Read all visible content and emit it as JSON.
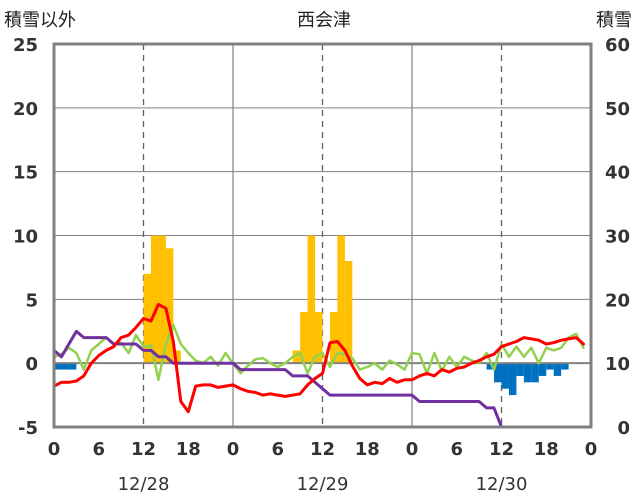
{
  "chart_data": {
    "type": "line",
    "title": "西会津",
    "ylabel_left": "積雪以外",
    "ylabel_right": "積雪",
    "ylim_left": [
      -5,
      25
    ],
    "ylim_right": [
      0,
      60
    ],
    "yticks_left": [
      "25",
      "20",
      "15",
      "10",
      "5",
      "0",
      "-5"
    ],
    "yticks_right": [
      "60",
      "50",
      "40",
      "30",
      "20",
      "10",
      "0"
    ],
    "xlim": [
      0,
      72
    ],
    "xticks": [
      {
        "x": 0,
        "label": "0"
      },
      {
        "x": 6,
        "label": "6"
      },
      {
        "x": 12,
        "label": "12"
      },
      {
        "x": 18,
        "label": "18"
      },
      {
        "x": 24,
        "label": "0"
      },
      {
        "x": 30,
        "label": "6"
      },
      {
        "x": 36,
        "label": "12"
      },
      {
        "x": 42,
        "label": "18"
      },
      {
        "x": 48,
        "label": "0"
      },
      {
        "x": 54,
        "label": "6"
      },
      {
        "x": 60,
        "label": "12"
      },
      {
        "x": 66,
        "label": "18"
      },
      {
        "x": 72,
        "label": "0"
      }
    ],
    "date_labels": [
      {
        "x": 12,
        "label": "12/28"
      },
      {
        "x": 36,
        "label": "12/29"
      },
      {
        "x": 60,
        "label": "12/30"
      }
    ],
    "day_boundaries": [
      24,
      48
    ],
    "noon_lines": [
      12,
      36,
      60
    ],
    "colors": {
      "precip_bar": "#FFC000",
      "snow_change_bar": "#0070C0",
      "temperature": "#FF0000",
      "snow_depth": "#7030A0",
      "wind": "#92D050",
      "grid": "#808080"
    },
    "precipitation_bars": [
      {
        "x": 12,
        "value": 7
      },
      {
        "x": 13,
        "value": 10
      },
      {
        "x": 14,
        "value": 10
      },
      {
        "x": 15,
        "value": 9
      },
      {
        "x": 16,
        "value": 1
      },
      {
        "x": 32,
        "value": 1
      },
      {
        "x": 33,
        "value": 4
      },
      {
        "x": 34,
        "value": 10
      },
      {
        "x": 35,
        "value": 4
      },
      {
        "x": 37,
        "value": 4
      },
      {
        "x": 38,
        "value": 10
      },
      {
        "x": 39,
        "value": 8
      }
    ],
    "snow_change_bars": [
      {
        "x": 0,
        "value": -0.5
      },
      {
        "x": 1,
        "value": -0.5
      },
      {
        "x": 2,
        "value": -0.5
      },
      {
        "x": 58,
        "value": -0.5
      },
      {
        "x": 59,
        "value": -1.5
      },
      {
        "x": 60,
        "value": -2
      },
      {
        "x": 61,
        "value": -2.5
      },
      {
        "x": 62,
        "value": -1
      },
      {
        "x": 63,
        "value": -1.5
      },
      {
        "x": 64,
        "value": -1.5
      },
      {
        "x": 65,
        "value": -1
      },
      {
        "x": 66,
        "value": -0.5
      },
      {
        "x": 67,
        "value": -1
      },
      {
        "x": 68,
        "value": -0.5
      }
    ],
    "temperature": [
      [
        0,
        -1.8
      ],
      [
        1,
        -1.5
      ],
      [
        2,
        -1.5
      ],
      [
        3,
        -1.4
      ],
      [
        4,
        -1
      ],
      [
        5,
        0
      ],
      [
        6,
        0.6
      ],
      [
        7,
        1
      ],
      [
        8,
        1.3
      ],
      [
        9,
        2
      ],
      [
        10,
        2.2
      ],
      [
        11,
        2.8
      ],
      [
        12,
        3.5
      ],
      [
        13,
        3.3
      ],
      [
        14,
        4.6
      ],
      [
        15,
        4.3
      ],
      [
        16,
        1.7
      ],
      [
        17,
        -3
      ],
      [
        18,
        -3.8
      ],
      [
        19,
        -1.8
      ],
      [
        20,
        -1.7
      ],
      [
        21,
        -1.7
      ],
      [
        22,
        -1.9
      ],
      [
        23,
        -1.8
      ],
      [
        24,
        -1.7
      ],
      [
        25,
        -2
      ],
      [
        26,
        -2.2
      ],
      [
        27,
        -2.3
      ],
      [
        28,
        -2.5
      ],
      [
        29,
        -2.4
      ],
      [
        30,
        -2.5
      ],
      [
        31,
        -2.6
      ],
      [
        32,
        -2.5
      ],
      [
        33,
        -2.4
      ],
      [
        34,
        -1.7
      ],
      [
        35,
        -1.2
      ],
      [
        36,
        -0.8
      ],
      [
        37,
        1.6
      ],
      [
        38,
        1.7
      ],
      [
        39,
        1
      ],
      [
        40,
        -0.2
      ],
      [
        41,
        -1.2
      ],
      [
        42,
        -1.7
      ],
      [
        43,
        -1.5
      ],
      [
        44,
        -1.6
      ],
      [
        45,
        -1.2
      ],
      [
        46,
        -1.5
      ],
      [
        47,
        -1.3
      ],
      [
        48,
        -1.3
      ],
      [
        49,
        -1
      ],
      [
        50,
        -0.8
      ],
      [
        51,
        -1
      ],
      [
        52,
        -0.5
      ],
      [
        53,
        -0.7
      ],
      [
        54,
        -0.4
      ],
      [
        55,
        -0.3
      ],
      [
        56,
        0
      ],
      [
        57,
        0.2
      ],
      [
        58,
        0.5
      ],
      [
        59,
        0.7
      ],
      [
        60,
        1.3
      ],
      [
        61,
        1.5
      ],
      [
        62,
        1.7
      ],
      [
        63,
        2
      ],
      [
        64,
        1.9
      ],
      [
        65,
        1.8
      ],
      [
        66,
        1.5
      ],
      [
        67,
        1.6
      ],
      [
        68,
        1.8
      ],
      [
        69,
        1.9
      ],
      [
        70,
        2
      ],
      [
        71,
        1.5
      ]
    ],
    "snow_depth": [
      [
        0,
        12
      ],
      [
        1,
        11
      ],
      [
        2,
        13
      ],
      [
        3,
        15
      ],
      [
        4,
        14
      ],
      [
        5,
        14
      ],
      [
        6,
        14
      ],
      [
        7,
        14
      ],
      [
        8,
        13
      ],
      [
        9,
        13
      ],
      [
        10,
        13
      ],
      [
        11,
        13
      ],
      [
        12,
        12
      ],
      [
        13,
        12
      ],
      [
        14,
        11
      ],
      [
        15,
        11
      ],
      [
        16,
        10
      ],
      [
        17,
        10
      ],
      [
        18,
        10
      ],
      [
        19,
        10
      ],
      [
        20,
        10
      ],
      [
        21,
        10
      ],
      [
        22,
        10
      ],
      [
        23,
        10
      ],
      [
        24,
        10
      ],
      [
        25,
        9
      ],
      [
        26,
        9
      ],
      [
        27,
        9
      ],
      [
        28,
        9
      ],
      [
        29,
        9
      ],
      [
        30,
        9
      ],
      [
        31,
        9
      ],
      [
        32,
        8
      ],
      [
        33,
        8
      ],
      [
        34,
        8
      ],
      [
        35,
        7
      ],
      [
        36,
        6
      ],
      [
        37,
        5
      ],
      [
        38,
        5
      ],
      [
        39,
        5
      ],
      [
        40,
        5
      ],
      [
        41,
        5
      ],
      [
        42,
        5
      ],
      [
        43,
        5
      ],
      [
        44,
        5
      ],
      [
        45,
        5
      ],
      [
        46,
        5
      ],
      [
        47,
        5
      ],
      [
        48,
        5
      ],
      [
        49,
        4
      ],
      [
        50,
        4
      ],
      [
        51,
        4
      ],
      [
        52,
        4
      ],
      [
        53,
        4
      ],
      [
        54,
        4
      ],
      [
        55,
        4
      ],
      [
        56,
        4
      ],
      [
        57,
        4
      ],
      [
        58,
        3
      ],
      [
        59,
        3
      ],
      [
        60,
        0
      ],
      [
        61,
        0
      ],
      [
        62,
        0
      ],
      [
        63,
        0
      ],
      [
        64,
        0
      ],
      [
        65,
        0
      ],
      [
        66,
        0
      ],
      [
        67,
        0
      ],
      [
        68,
        0
      ],
      [
        69,
        0
      ],
      [
        70,
        0
      ],
      [
        71,
        0
      ]
    ],
    "wind": [
      [
        0,
        0.5
      ],
      [
        1,
        0.7
      ],
      [
        2,
        1.2
      ],
      [
        3,
        0.8
      ],
      [
        4,
        -0.5
      ],
      [
        5,
        1
      ],
      [
        6,
        1.5
      ],
      [
        7,
        2
      ],
      [
        8,
        1.5
      ],
      [
        9,
        1.6
      ],
      [
        10,
        0.8
      ],
      [
        11,
        2.2
      ],
      [
        12,
        1.3
      ],
      [
        13,
        1.4
      ],
      [
        14,
        -1.3
      ],
      [
        15,
        1.5
      ],
      [
        16,
        3
      ],
      [
        17,
        1.5
      ],
      [
        18,
        0.8
      ],
      [
        19,
        0.2
      ],
      [
        20,
        0
      ],
      [
        21,
        0.5
      ],
      [
        22,
        -0.2
      ],
      [
        23,
        0.8
      ],
      [
        24,
        0
      ],
      [
        25,
        -0.8
      ],
      [
        26,
        -0.2
      ],
      [
        27,
        0.3
      ],
      [
        28,
        0.4
      ],
      [
        29,
        0
      ],
      [
        30,
        -0.3
      ],
      [
        31,
        0
      ],
      [
        32,
        0.5
      ],
      [
        33,
        0.8
      ],
      [
        34,
        -0.8
      ],
      [
        35,
        0.5
      ],
      [
        36,
        0.8
      ],
      [
        37,
        -0.3
      ],
      [
        38,
        0.8
      ],
      [
        39,
        0.7
      ],
      [
        40,
        0.4
      ],
      [
        41,
        -0.5
      ],
      [
        42,
        -0.3
      ],
      [
        43,
        0
      ],
      [
        44,
        -0.5
      ],
      [
        45,
        0.2
      ],
      [
        46,
        -0.1
      ],
      [
        47,
        -0.5
      ],
      [
        48,
        0.8
      ],
      [
        49,
        0.7
      ],
      [
        50,
        -0.8
      ],
      [
        51,
        0.8
      ],
      [
        52,
        -0.6
      ],
      [
        53,
        0.5
      ],
      [
        54,
        -0.3
      ],
      [
        55,
        0.5
      ],
      [
        56,
        0.2
      ],
      [
        57,
        0
      ],
      [
        58,
        0.8
      ],
      [
        59,
        -0.5
      ],
      [
        60,
        1.5
      ],
      [
        61,
        0.5
      ],
      [
        62,
        1.3
      ],
      [
        63,
        0.5
      ],
      [
        64,
        1.2
      ],
      [
        65,
        0
      ],
      [
        66,
        1.2
      ],
      [
        67,
        1
      ],
      [
        68,
        1.2
      ],
      [
        69,
        2
      ],
      [
        70,
        2.3
      ],
      [
        71,
        1.2
      ]
    ]
  }
}
